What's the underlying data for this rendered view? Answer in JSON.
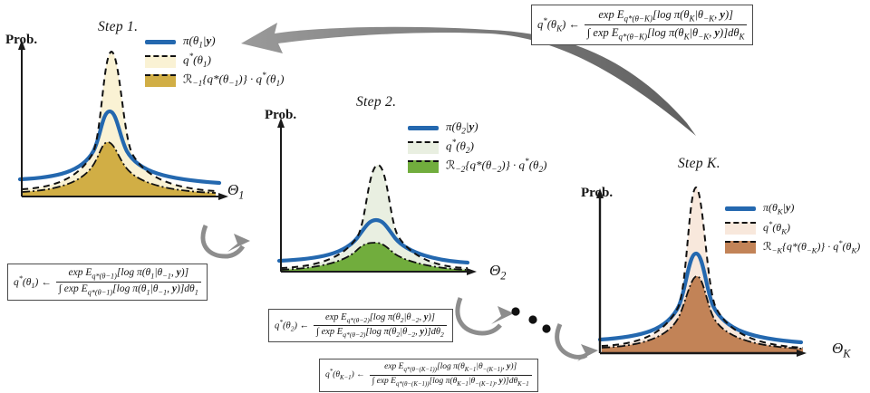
{
  "colors": {
    "blue_line": "#2468af",
    "step1_light": "#faf2d4",
    "step1_dark": "#d1ae45",
    "step2_light": "#e9efe1",
    "step2_dark": "#71ad3d",
    "stepk_light": "#f8e8dc",
    "stepk_dark": "#c28357",
    "arrow_gray": "#8a8a8a",
    "axis_black": "#1a1a1a"
  },
  "plots": [
    {
      "title": "Step 1.",
      "ylabel": "Prob.",
      "xlabel": "Θ_{1}",
      "legend": [
        {
          "label": "π(θ_{1}|**y**)",
          "style": "blue-solid-line"
        },
        {
          "label": "q^{*}(θ_{1})",
          "style": "dashed-line-cream-fill"
        },
        {
          "label": "ℛ_{−1}{q*(θ_{−1})} · q^{*}(θ_{1})",
          "style": "dashdot-line-gold-fill"
        }
      ]
    },
    {
      "title": "Step 2.",
      "ylabel": "Prob.",
      "xlabel": "Θ_{2}",
      "legend": [
        {
          "label": "π(θ_{2}|**y**)",
          "style": "blue-solid-line"
        },
        {
          "label": "q^{*}(θ_{2})",
          "style": "dashed-line-lightgreen-fill"
        },
        {
          "label": "ℛ_{−2}{q*(θ_{−2})} · q^{*}(θ_{2})",
          "style": "dashdot-line-green-fill"
        }
      ]
    },
    {
      "title": "Step K.",
      "ylabel": "Prob.",
      "xlabel": "Θ_{K}",
      "legend": [
        {
          "label": "π(θ_{K}|**y**)",
          "style": "blue-solid-line"
        },
        {
          "label": "q^{*}(θ_{K})",
          "style": "dashed-line-lightpink-fill"
        },
        {
          "label": "ℛ_{−K}{q*(θ_{−K})} · q^{*}(θ_{K})",
          "style": "dashdot-line-brown-fill"
        }
      ]
    }
  ],
  "formulas": {
    "stepK": {
      "lhs": "q^{*}(θ_{K}) ←",
      "num": "exp E_{q*(θ−K)}[log π(θ_{K}|θ_{−K}, **y**)]",
      "den": "∫ exp E_{q*(θ−K)}[log π(θ_{K}|θ_{−K}, **y**)]dθ_{K}"
    },
    "step1": {
      "lhs": "q^{*}(θ_{1}) ←",
      "num": "exp E_{q*(θ−1)}[log π(θ_{1}|θ_{−1}, **y**)]",
      "den": "∫ exp E_{q*(θ−1)}[log π(θ_{1}|θ_{−1}, **y**)]dθ_{1}"
    },
    "step2": {
      "lhs": "q^{*}(θ_{2}) ←",
      "num": "exp E_{q*(θ−2)}[log π(θ_{2}|θ_{−2}, **y**)]",
      "den": "∫ exp E_{q*(θ−2)}[log π(θ_{2}|θ_{−2}, **y**)]dθ_{2}"
    },
    "stepK1": {
      "lhs": "q^{*}(θ_{K−1}) ←",
      "num": "exp E_{q*(θ−(K−1))}[log π(θ_{K−1}|θ_{−(K−1)}, **y**)]",
      "den": "∫ exp E_{q*(θ−(K−1))}[log π(θ_{K−1}|θ_{−(K−1)}, **y**)]dθ_{K−1}"
    }
  }
}
